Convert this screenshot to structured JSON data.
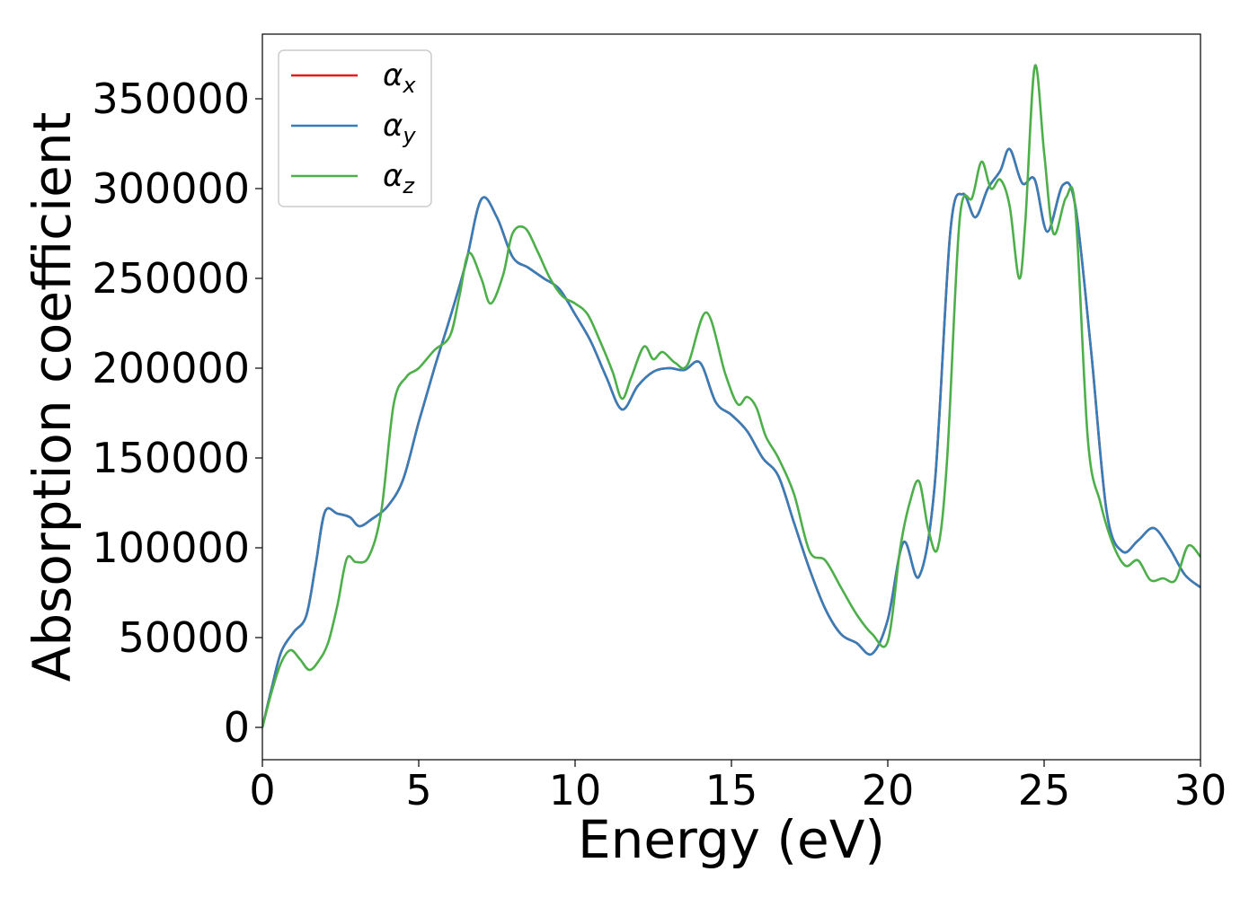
{
  "chart_data": {
    "type": "line",
    "xlabel": "Energy (eV)",
    "ylabel": "Absorption coefficient",
    "xlim": [
      0,
      30
    ],
    "ylim": [
      -18000,
      386000
    ],
    "xticks": [
      0,
      5,
      10,
      15,
      20,
      25,
      30
    ],
    "xtick_labels": [
      "0",
      "5",
      "10",
      "15",
      "20",
      "25",
      "30"
    ],
    "yticks": [
      0,
      50000,
      100000,
      150000,
      200000,
      250000,
      300000,
      350000
    ],
    "ytick_labels": [
      "0",
      "50000",
      "100000",
      "150000",
      "200000",
      "250000",
      "300000",
      "350000"
    ],
    "grid": false,
    "legend_position": "top-left",
    "series": [
      {
        "name": "αx",
        "symbol": "α",
        "subscript": "x",
        "color": "#e41a1c",
        "x": [
          0,
          0.3,
          0.6,
          1.0,
          1.4,
          1.7,
          2.0,
          2.4,
          2.8,
          3.1,
          3.5,
          4.0,
          4.5,
          5.0,
          5.5,
          6.0,
          6.5,
          7.0,
          7.5,
          8.0,
          8.5,
          9.0,
          9.5,
          10.0,
          10.5,
          11.0,
          11.5,
          12.0,
          12.5,
          13.0,
          13.5,
          14.0,
          14.5,
          15.0,
          15.5,
          16.0,
          16.5,
          17.0,
          17.5,
          18.0,
          18.5,
          19.0,
          19.5,
          20.0,
          20.5,
          21.0,
          21.5,
          22.0,
          22.4,
          22.8,
          23.2,
          23.6,
          23.9,
          24.3,
          24.7,
          25.1,
          25.6,
          26.0,
          26.5,
          27.0,
          27.5,
          28.0,
          28.5,
          29.0,
          29.5,
          30.0
        ],
        "y": [
          0,
          22000,
          42000,
          53000,
          62000,
          90000,
          120000,
          119000,
          117000,
          112000,
          116000,
          123000,
          138000,
          170000,
          200000,
          228000,
          258000,
          294000,
          284000,
          262000,
          256000,
          250000,
          244000,
          230000,
          215000,
          195000,
          177000,
          190000,
          198000,
          200000,
          199000,
          203000,
          181000,
          174000,
          165000,
          150000,
          140000,
          114000,
          88000,
          66000,
          52000,
          47000,
          41000,
          60000,
          103000,
          84000,
          135000,
          276000,
          297000,
          284000,
          300000,
          310000,
          322000,
          303000,
          305000,
          276000,
          302000,
          290000,
          210000,
          120000,
          98000,
          104000,
          111000,
          100000,
          85000,
          78000
        ]
      },
      {
        "name": "αy",
        "symbol": "α",
        "subscript": "y",
        "color": "#377eb8",
        "x": [
          0,
          0.3,
          0.6,
          1.0,
          1.4,
          1.7,
          2.0,
          2.4,
          2.8,
          3.1,
          3.5,
          4.0,
          4.5,
          5.0,
          5.5,
          6.0,
          6.5,
          7.0,
          7.5,
          8.0,
          8.5,
          9.0,
          9.5,
          10.0,
          10.5,
          11.0,
          11.5,
          12.0,
          12.5,
          13.0,
          13.5,
          14.0,
          14.5,
          15.0,
          15.5,
          16.0,
          16.5,
          17.0,
          17.5,
          18.0,
          18.5,
          19.0,
          19.5,
          20.0,
          20.5,
          21.0,
          21.5,
          22.0,
          22.4,
          22.8,
          23.2,
          23.6,
          23.9,
          24.3,
          24.7,
          25.1,
          25.6,
          26.0,
          26.5,
          27.0,
          27.5,
          28.0,
          28.5,
          29.0,
          29.5,
          30.0
        ],
        "y": [
          0,
          22000,
          42000,
          53000,
          62000,
          90000,
          120000,
          119000,
          117000,
          112000,
          116000,
          123000,
          138000,
          170000,
          200000,
          228000,
          258000,
          294000,
          284000,
          262000,
          256000,
          250000,
          244000,
          230000,
          215000,
          195000,
          177000,
          190000,
          198000,
          200000,
          199000,
          203000,
          181000,
          174000,
          165000,
          150000,
          140000,
          114000,
          88000,
          66000,
          52000,
          47000,
          41000,
          60000,
          103000,
          84000,
          135000,
          276000,
          297000,
          284000,
          300000,
          310000,
          322000,
          303000,
          305000,
          276000,
          302000,
          290000,
          210000,
          120000,
          98000,
          104000,
          111000,
          100000,
          85000,
          78000
        ]
      },
      {
        "name": "αz",
        "symbol": "α",
        "subscript": "z",
        "color": "#4daf4a",
        "x": [
          0,
          0.3,
          0.6,
          0.9,
          1.2,
          1.5,
          1.8,
          2.1,
          2.4,
          2.7,
          3.0,
          3.4,
          3.8,
          4.2,
          4.6,
          5.0,
          5.5,
          6.0,
          6.3,
          6.6,
          7.0,
          7.3,
          7.7,
          8.0,
          8.4,
          8.8,
          9.2,
          9.6,
          10.0,
          10.4,
          10.8,
          11.2,
          11.5,
          11.8,
          12.2,
          12.5,
          12.8,
          13.2,
          13.6,
          14.2,
          14.8,
          15.2,
          15.5,
          15.8,
          16.1,
          16.5,
          17.0,
          17.5,
          18.0,
          18.5,
          19.0,
          19.5,
          20.0,
          20.4,
          20.7,
          21.0,
          21.3,
          21.6,
          21.9,
          22.3,
          22.7,
          23.0,
          23.3,
          23.6,
          23.9,
          24.2,
          24.4,
          24.7,
          25.0,
          25.3,
          25.7,
          26.0,
          26.4,
          26.8,
          27.2,
          27.6,
          28.0,
          28.4,
          28.8,
          29.2,
          29.6,
          30.0
        ],
        "y": [
          0,
          20000,
          36000,
          43000,
          38000,
          32000,
          37000,
          47000,
          68000,
          94000,
          92000,
          95000,
          120000,
          180000,
          195000,
          200000,
          210000,
          218000,
          240000,
          264000,
          250000,
          236000,
          252000,
          275000,
          278000,
          265000,
          250000,
          240000,
          236000,
          230000,
          215000,
          198000,
          183000,
          195000,
          212000,
          205000,
          209000,
          203000,
          202000,
          231000,
          197000,
          180000,
          184000,
          178000,
          162000,
          150000,
          130000,
          98000,
          93000,
          78000,
          63000,
          52000,
          48000,
          100000,
          125000,
          137000,
          110000,
          100000,
          150000,
          283000,
          295000,
          315000,
          300000,
          305000,
          290000,
          250000,
          282000,
          368000,
          320000,
          275000,
          295000,
          288000,
          160000,
          125000,
          102000,
          90000,
          93000,
          82000,
          83000,
          82000,
          101000,
          95000
        ]
      }
    ]
  }
}
